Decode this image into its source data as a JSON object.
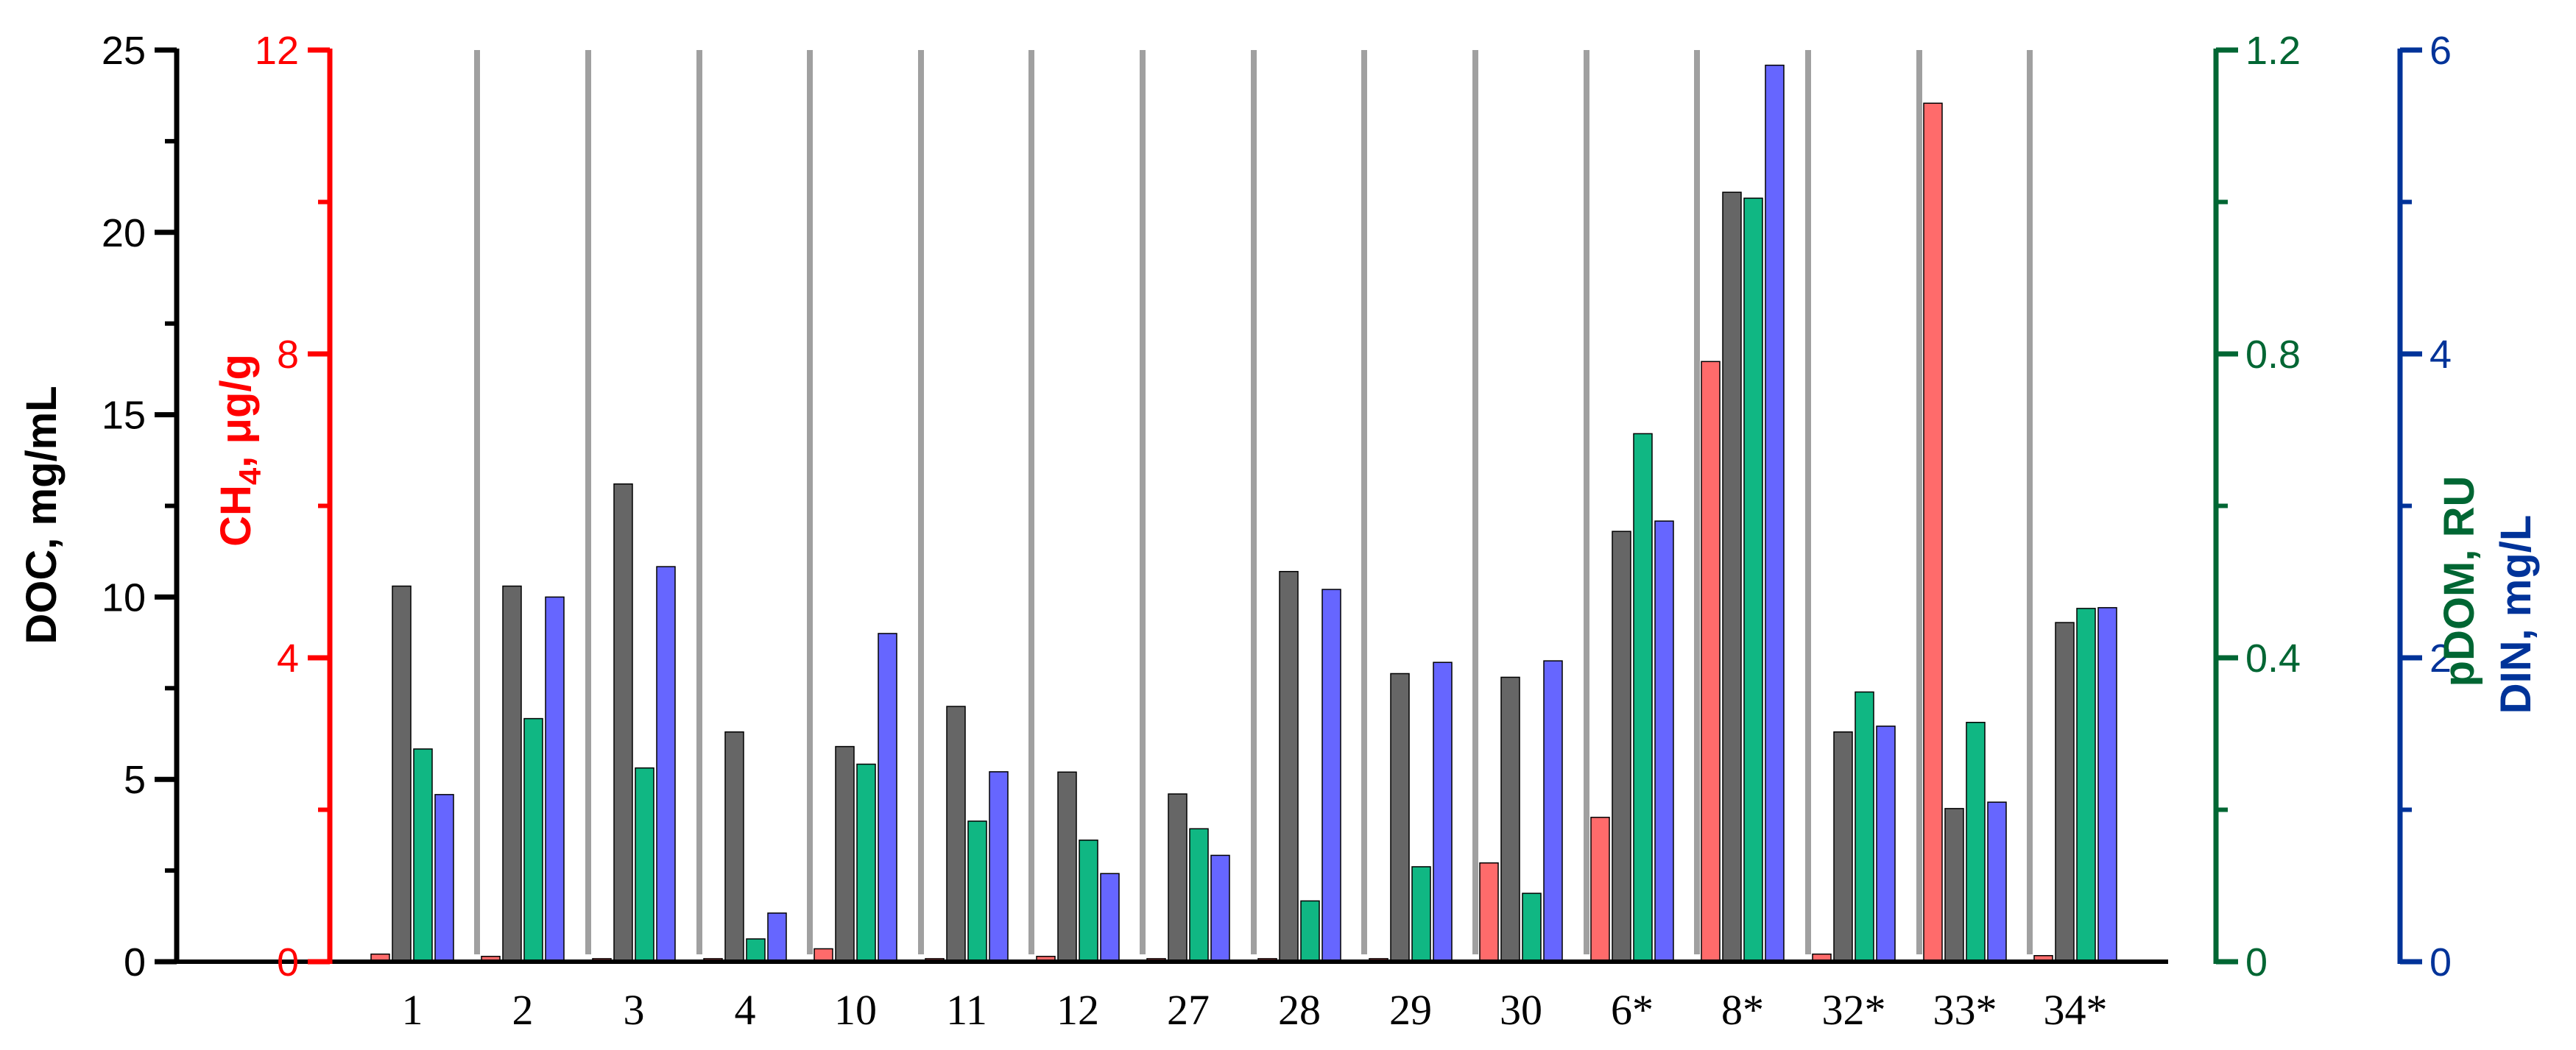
{
  "chart_data": {
    "type": "bar",
    "categories": [
      "1",
      "2",
      "3",
      "4",
      "10",
      "11",
      "12",
      "27",
      "28",
      "29",
      "30",
      "6*",
      "8*",
      "32*",
      "33*",
      "34*"
    ],
    "series": [
      {
        "axis": "ch4",
        "color": "#ff6b6b",
        "values": [
          0.1,
          0.07,
          0.04,
          0.04,
          0.17,
          0.04,
          0.07,
          0.04,
          0.04,
          0.04,
          1.3,
          1.9,
          7.9,
          0.1,
          11.3,
          0.08
        ]
      },
      {
        "axis": "doc",
        "color": "#666666",
        "values": [
          10.3,
          10.3,
          13.1,
          6.3,
          5.9,
          7.0,
          5.2,
          4.6,
          10.7,
          7.9,
          7.8,
          11.8,
          21.1,
          6.3,
          4.2,
          9.3
        ]
      },
      {
        "axis": "pdom",
        "color": "#10b783",
        "values": [
          0.28,
          0.32,
          0.255,
          0.03,
          0.26,
          0.185,
          0.16,
          0.175,
          0.08,
          0.125,
          0.09,
          0.695,
          1.005,
          0.355,
          0.315,
          0.465
        ]
      },
      {
        "axis": "din",
        "color": "#6666ff",
        "values": [
          1.1,
          2.4,
          2.6,
          0.32,
          2.16,
          1.25,
          0.58,
          0.7,
          2.45,
          1.97,
          1.98,
          2.9,
          5.9,
          1.55,
          1.05,
          2.33
        ]
      }
    ],
    "axes": {
      "doc": {
        "label": "DOC, mg/mL",
        "range": [
          0,
          25
        ],
        "ticks": [
          "0",
          "5",
          "10",
          "15",
          "20",
          "25"
        ],
        "color": "#000000",
        "position": "left-outer"
      },
      "ch4": {
        "label_main": "CH",
        "label_sub": "4",
        "label_rest": ", μg/g",
        "range": [
          0,
          12
        ],
        "ticks": [
          "0",
          "4",
          "8",
          "12"
        ],
        "color": "#ff0000",
        "position": "left-inner"
      },
      "pdom": {
        "label": "pDOM, RU",
        "range": [
          0,
          1.2
        ],
        "ticks": [
          "0",
          "0.4",
          "0.8",
          "1.2"
        ],
        "color": "#006633",
        "position": "right-inner"
      },
      "din": {
        "label": "DIN, mg/L",
        "range": [
          0,
          6
        ],
        "ticks": [
          "0",
          "2",
          "4",
          "6"
        ],
        "color": "#003399",
        "position": "right-outer"
      }
    },
    "separators": true,
    "grid": false
  }
}
